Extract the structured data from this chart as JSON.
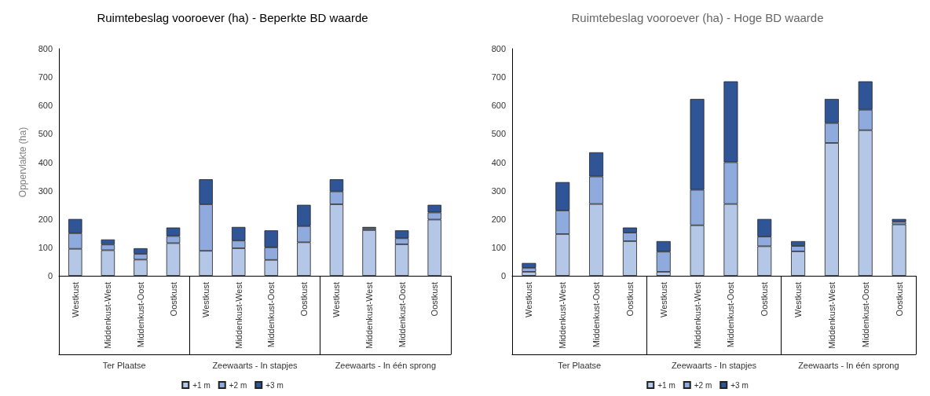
{
  "chart_data": [
    {
      "type": "bar",
      "title": "Ruimtebeslag vooroever (ha) - Beperkte BD waarde",
      "ylabel": "Oppervlakte (ha)",
      "stacked": true,
      "grid": false,
      "legend": "bottom",
      "categories": [
        "Westkust",
        "Middenkust-West",
        "Middenkust-Oost",
        "Oostkust",
        "Westkust",
        "Middenkust-West",
        "Middenkust-Oost",
        "Oostkust",
        "Westkust",
        "Middenkust-West",
        "Middenkust-Oost",
        "Oostkust"
      ],
      "annotations": [
        "Ter Plaatse",
        "Zeewaarts - In stapjes",
        "Zeewaarts - In één sprong"
      ],
      "ylim": [
        0,
        800
      ],
      "yticks": [
        0,
        100,
        200,
        300,
        400,
        500,
        600,
        700,
        800
      ],
      "series": [
        {
          "name": "+1 m",
          "color": "#b4c7e7",
          "values": [
            95,
            90,
            57,
            115,
            88,
            97,
            56,
            118,
            252,
            161,
            111,
            198
          ]
        },
        {
          "name": "+2 m",
          "color": "#8faadc",
          "values": [
            55,
            20,
            20,
            25,
            164,
            27,
            44,
            57,
            45,
            6,
            21,
            25
          ]
        },
        {
          "name": "+3 m",
          "color": "#2f5597",
          "values": [
            50,
            18,
            20,
            30,
            88,
            48,
            60,
            75,
            43,
            5,
            28,
            27
          ]
        }
      ]
    },
    {
      "type": "bar",
      "title": "Ruimtebeslag vooroever (ha) - Hoge BD waarde",
      "stacked": true,
      "grid": false,
      "legend": "bottom",
      "categories": [
        "Westkust",
        "Middenkust-West",
        "Middenkust-Oost",
        "Oostkust",
        "Westkust",
        "Middenkust-West",
        "Middenkust-Oost",
        "Oostkust",
        "Westkust",
        "Middenkust-West",
        "Middenkust-Oost",
        "Oostkust"
      ],
      "annotations": [
        "Ter Plaatse",
        "Zeewaarts - In stapjes",
        "Zeewaarts - In één sprong"
      ],
      "ylim": [
        0,
        800
      ],
      "yticks": [
        0,
        100,
        200,
        300,
        400,
        500,
        600,
        700,
        800
      ],
      "series": [
        {
          "name": "+1 m",
          "color": "#b4c7e7",
          "values": [
            14,
            147,
            253,
            122,
            14,
            178,
            253,
            104,
            86,
            468,
            513,
            181
          ]
        },
        {
          "name": "+2 m",
          "color": "#8faadc",
          "values": [
            14,
            83,
            97,
            30,
            71,
            125,
            147,
            34,
            19,
            70,
            72,
            9
          ]
        },
        {
          "name": "+3 m",
          "color": "#2f5597",
          "values": [
            17,
            100,
            85,
            18,
            37,
            320,
            285,
            62,
            17,
            85,
            100,
            10
          ]
        }
      ]
    }
  ]
}
